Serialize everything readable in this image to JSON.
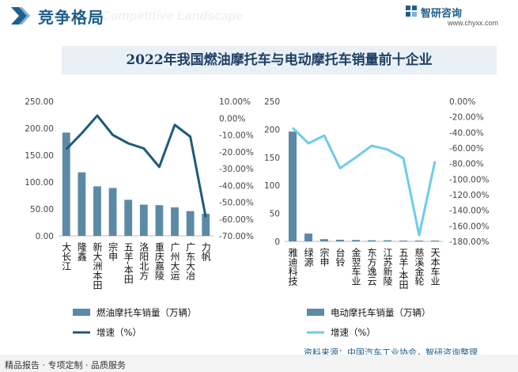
{
  "header": {
    "section_title": "竞争格局",
    "section_subtitle": "Competitive Landscape",
    "brand_name": "智研咨询",
    "brand_url": "www.chyxx.com"
  },
  "colors": {
    "bar": "#5b8aa6",
    "fuel_line": "#1d5b7a",
    "electric_line": "#6fcbe8",
    "title_bg": "#e9f0f6"
  },
  "chart_data": [
    {
      "type": "bar",
      "title": "2022年我国燃油摩托车与电动摩托车销量前十企业",
      "categories": [
        "大长江",
        "隆鑫",
        "新大洲本田",
        "宗申",
        "五羊-本田",
        "洛阳北方",
        "重庆嘉陵",
        "广州大运",
        "广东大冶",
        "力帆"
      ],
      "series": [
        {
          "name": "燃油摩托车销量（万辆）",
          "axis": "left",
          "values": [
            192,
            118,
            92,
            89,
            67,
            58,
            57,
            53,
            46,
            41
          ]
        },
        {
          "name": "增速（%）",
          "axis": "right",
          "render": "line",
          "values": [
            -18.5,
            -9,
            1.5,
            -10,
            -15,
            -18,
            -29,
            -4,
            -11,
            -59
          ]
        }
      ],
      "y_left": {
        "min": 0,
        "max": 250,
        "ticks": [
          "0.00",
          "50.00",
          "100.00",
          "150.00",
          "200.00",
          "250.00"
        ]
      },
      "y_right": {
        "min": -70,
        "max": 10,
        "ticks": [
          "-70.00%",
          "-60.00%",
          "-50.00%",
          "-40.00%",
          "-30.00%",
          "-20.00%",
          "-10.00%",
          "0.00%",
          "10.00%"
        ]
      }
    },
    {
      "type": "bar",
      "categories": [
        "雅迪科技",
        "绿源",
        "宗申",
        "台铃",
        "金翌车业",
        "东方逸云",
        "江苏新陵",
        "五羊-本田",
        "慈溪金轮",
        "天本车业"
      ],
      "series": [
        {
          "name": "电动摩托车销量（万辆）",
          "axis": "left",
          "values": [
            196,
            14,
            4,
            3,
            2.5,
            2,
            2,
            1.5,
            1.5,
            1.5
          ]
        },
        {
          "name": "增速（%）",
          "axis": "right",
          "render": "line",
          "values": [
            -34,
            -54,
            -44,
            -86,
            -72,
            -57,
            -62,
            -73,
            -172,
            -77
          ]
        }
      ],
      "y_left": {
        "min": 0,
        "max": 250,
        "ticks": [
          "0",
          "50",
          "100",
          "150",
          "200",
          "250"
        ]
      },
      "y_right": {
        "min": -180,
        "max": 0,
        "ticks": [
          "-180.00%",
          "-160.00%",
          "-140.00%",
          "-120.00%",
          "-100.00%",
          "-80.00%",
          "-60.00%",
          "-40.00%",
          "-20.00%",
          "0.00%"
        ]
      }
    }
  ],
  "footer": {
    "tagline": "精品报告 · 专项定制 · 品质服务",
    "source": "资料来源：中国汽车工业协会，智研咨询整理"
  }
}
